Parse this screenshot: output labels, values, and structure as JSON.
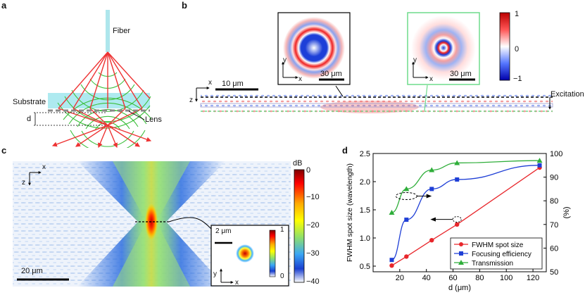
{
  "panels": {
    "a": {
      "label": "a",
      "fiber_label": "Fiber",
      "substrate_label": "Substrate",
      "lens_label": "Lens",
      "d_label": "d"
    },
    "b": {
      "label": "b",
      "scalebar_main": "10 μm",
      "scalebar_inset_left": "30 μm",
      "scalebar_inset_right": "30 μm",
      "colorbar_max": "1",
      "colorbar_mid": "0",
      "colorbar_min": "−1",
      "excitation_label": "Excitation",
      "axis_x": "x",
      "axis_y": "y",
      "axis_z": "z"
    },
    "c": {
      "label": "c",
      "colorbar_unit": "dB",
      "colorbar_ticks": [
        "0",
        "−10",
        "−20",
        "−30",
        "−40"
      ],
      "scalebar_main": "20 μm",
      "scalebar_inset": "2 μm",
      "inset_cbar_max": "1",
      "inset_cbar_min": "0",
      "axis_x": "x",
      "axis_y": "y",
      "axis_z": "z"
    },
    "d": {
      "label": "d"
    }
  },
  "chart_data": {
    "type": "line",
    "xlabel": "d (μm)",
    "ylabel": "FWHM spot size (wavelength)",
    "y2label": "(%)",
    "xlim": [
      0,
      130
    ],
    "ylim": [
      0.4,
      2.5
    ],
    "y2lim": [
      50,
      100
    ],
    "xticks": [
      20,
      40,
      60,
      80,
      100,
      120
    ],
    "yticks": [
      0.5,
      1.0,
      1.5,
      2.0,
      2.5
    ],
    "y2ticks": [
      50,
      60,
      70,
      80,
      90,
      100
    ],
    "legend_position": "bottom-right",
    "series": [
      {
        "name": "FWHM spot size",
        "axis": "left",
        "color": "#e8262b",
        "marker": "circle",
        "x": [
          14,
          25,
          44,
          63,
          125
        ],
        "y": [
          0.51,
          0.67,
          0.96,
          1.24,
          2.25
        ]
      },
      {
        "name": "Focusing efficiency",
        "axis": "right",
        "color": "#1f3fd6",
        "marker": "square",
        "x": [
          14,
          25,
          44,
          63,
          125
        ],
        "y": [
          55,
          72,
          85,
          89,
          95
        ]
      },
      {
        "name": "Transmission",
        "axis": "right",
        "color": "#2fae3a",
        "marker": "triangle",
        "x": [
          14,
          25,
          44,
          63,
          125
        ],
        "y": [
          75,
          85,
          93,
          96,
          97
        ]
      }
    ]
  }
}
